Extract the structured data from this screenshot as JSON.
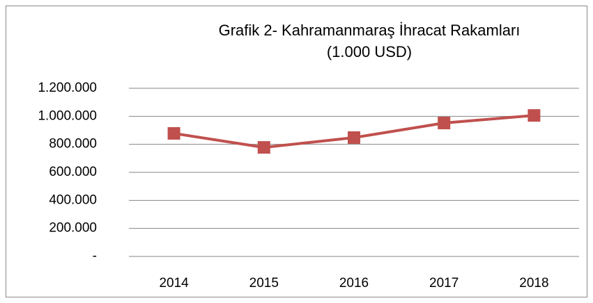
{
  "chart_data": {
    "type": "line",
    "title": "Grafik 2- Kahramanmaraş İhracat Rakamları (1.000 USD)",
    "categories": [
      "2014",
      "2015",
      "2016",
      "2017",
      "2018"
    ],
    "values": [
      878000,
      778000,
      848000,
      952000,
      1006000
    ],
    "color": "#c0504d",
    "ylim": [
      0,
      1200000
    ],
    "yticks": [
      {
        "value": 0,
        "label": "-"
      },
      {
        "value": 200000,
        "label": "200.000"
      },
      {
        "value": 400000,
        "label": "400.000"
      },
      {
        "value": 600000,
        "label": "600.000"
      },
      {
        "value": 800000,
        "label": "800.000"
      },
      {
        "value": 1000000,
        "label": "1.000.000"
      },
      {
        "value": 1200000,
        "label": "1.200.000"
      }
    ],
    "grid": true
  }
}
